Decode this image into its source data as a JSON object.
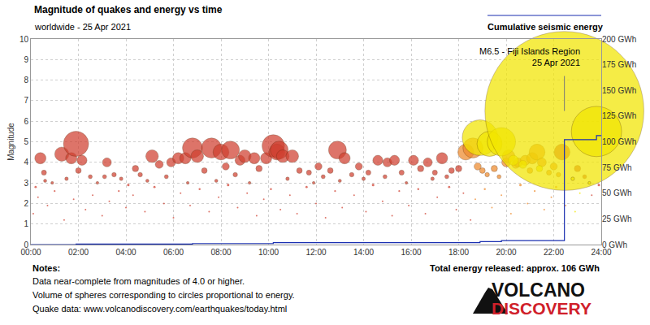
{
  "chart_data": {
    "type": "scatter",
    "title": "Magnitude of quakes and energy vs time",
    "subtitle": "worldwide - 25 Apr 2021",
    "y_label": "Magnitude",
    "xlim": [
      0,
      24
    ],
    "xticks": [
      {
        "value": 0,
        "label": "00:00"
      },
      {
        "value": 2,
        "label": "02:00"
      },
      {
        "value": 4,
        "label": "04:00"
      },
      {
        "value": 6,
        "label": "06:00"
      },
      {
        "value": 8,
        "label": "08:00"
      },
      {
        "value": 10,
        "label": "10:00"
      },
      {
        "value": 12,
        "label": "12:00"
      },
      {
        "value": 14,
        "label": "14:00"
      },
      {
        "value": 16,
        "label": "16:00"
      },
      {
        "value": 18,
        "label": "18:00"
      },
      {
        "value": 20,
        "label": "20:00"
      },
      {
        "value": 22,
        "label": "22:00"
      },
      {
        "value": 24,
        "label": "24:00"
      }
    ],
    "ylim": [
      0,
      10
    ],
    "yticks": [
      0,
      1,
      2,
      3,
      4,
      5,
      6,
      7,
      8,
      9,
      10
    ],
    "y2lim": [
      0,
      200
    ],
    "y2ticks": [
      {
        "value": 0,
        "label": "0 GWh"
      },
      {
        "value": 25,
        "label": "25 GWh"
      },
      {
        "value": 50,
        "label": "50 GWh"
      },
      {
        "value": 75,
        "label": "75 GWh"
      },
      {
        "value": 100,
        "label": "100 GWh"
      },
      {
        "value": 125,
        "label": "125 GWh"
      },
      {
        "value": 150,
        "label": "150 GWh"
      },
      {
        "value": 175,
        "label": "175 GWh"
      },
      {
        "value": 200,
        "label": "200 GWh"
      }
    ],
    "grid": true,
    "series": [
      {
        "type": "scatter",
        "marker": "circle",
        "color": "#d04030",
        "x": [
          0.1,
          0.2,
          0.3,
          0.4,
          0.55,
          0.6,
          0.7,
          0.9,
          1.0,
          1.3,
          1.4,
          1.5,
          1.7,
          1.8,
          1.9,
          2.0,
          2.15,
          2.3,
          2.5,
          2.6,
          2.8,
          3.0,
          3.1,
          3.2,
          3.3,
          3.5,
          3.7,
          3.8,
          4.0,
          4.1,
          4.3,
          4.4,
          4.6,
          4.8,
          4.9,
          5.1,
          5.2,
          5.4,
          5.6,
          5.7,
          5.9,
          6.0,
          6.2,
          6.3,
          6.5,
          6.6,
          6.7,
          6.8,
          7.0,
          7.1,
          7.3,
          7.5,
          7.6,
          7.8,
          7.9,
          8.0,
          8.2,
          8.3,
          8.4,
          8.6,
          8.7,
          8.8,
          9.0,
          9.1,
          9.2,
          9.4,
          9.5,
          9.6,
          9.8,
          9.9,
          10.1,
          10.2,
          10.35,
          10.45,
          10.5,
          10.6,
          10.8,
          10.9,
          11.0,
          11.2,
          11.3,
          11.6,
          11.7,
          11.9,
          12.0,
          12.1,
          12.3,
          12.4,
          12.6,
          12.8,
          12.9,
          13.0,
          13.1,
          13.2,
          13.5,
          13.6,
          13.8,
          14.0,
          14.1,
          14.2,
          14.4,
          14.6,
          14.8,
          14.9,
          15.0,
          15.2,
          15.3,
          15.5,
          15.6,
          15.8,
          15.9,
          16.1,
          16.3,
          16.4,
          16.6,
          16.7,
          16.9,
          17.0,
          17.1,
          17.3,
          17.5,
          17.6,
          17.7,
          17.9,
          18.0,
          18.2,
          18.5,
          22.35,
          23.0,
          23.3,
          23.6,
          23.9
        ],
        "values": [
          1.5,
          2.8,
          2.3,
          4.2,
          3.5,
          3.1,
          1.9,
          3.0,
          2.6,
          4.4,
          1.2,
          3.2,
          4.2,
          2.2,
          4.9,
          3.6,
          4.1,
          1.7,
          3.3,
          2.4,
          3.0,
          1.4,
          3.3,
          4.0,
          2.1,
          3.4,
          2.6,
          3.2,
          1.8,
          2.9,
          2.4,
          3.7,
          3.4,
          1.6,
          3.1,
          4.3,
          2.8,
          3.9,
          2.0,
          3.3,
          4.0,
          1.3,
          4.2,
          2.5,
          4.2,
          3.0,
          1.9,
          4.7,
          4.3,
          2.7,
          3.6,
          1.6,
          4.7,
          3.1,
          2.3,
          4.5,
          3.8,
          2.9,
          4.6,
          3.4,
          1.8,
          4.1,
          4.3,
          2.5,
          3.0,
          4.2,
          1.4,
          3.7,
          2.2,
          4.2,
          2.7,
          4.8,
          4.5,
          4.6,
          1.7,
          4.3,
          3.2,
          2.4,
          4.3,
          1.5,
          3.6,
          2.8,
          3.5,
          3.0,
          2.0,
          3.8,
          3.3,
          1.3,
          3.6,
          2.6,
          4.6,
          3.1,
          1.8,
          4.2,
          3.4,
          2.4,
          3.8,
          3.2,
          1.6,
          3.5,
          2.9,
          4.1,
          2.1,
          3.3,
          4.0,
          1.4,
          4.1,
          2.6,
          3.5,
          3.0,
          1.9,
          4.1,
          2.7,
          3.7,
          1.5,
          4.0,
          3.2,
          3.5,
          2.3,
          4.2,
          3.3,
          2.8,
          3.6,
          1.7,
          3.7,
          2.5,
          1.2,
          4.5,
          3.7,
          3.3,
          2.4,
          2.9
        ]
      },
      {
        "type": "scatter",
        "marker": "circle",
        "color": "#ee8a2c",
        "x": [
          18.3,
          18.6,
          18.7,
          18.8,
          19.0,
          19.1,
          19.2,
          19.4,
          19.5,
          19.7,
          19.8,
          20.0,
          20.1,
          20.2,
          20.4,
          20.5,
          20.6,
          20.8,
          20.9,
          21.0,
          21.1,
          21.2,
          21.3,
          21.5,
          21.6,
          21.8,
          21.9,
          22.0,
          22.1,
          22.2,
          22.5
        ],
        "values": [
          4.5,
          4.7,
          2.2,
          3.8,
          3.6,
          2.7,
          3.4,
          1.8,
          3.7,
          3.3,
          2.4,
          4.0,
          4.3,
          1.5,
          3.9,
          4.0,
          2.9,
          4.1,
          2.0,
          3.6,
          4.2,
          2.6,
          4.5,
          4.0,
          1.7,
          3.5,
          2.3,
          3.8,
          2.8,
          3.4,
          1.9
        ]
      },
      {
        "type": "scatter",
        "marker": "circle",
        "color": "#f2e600",
        "x": [
          18.9,
          19.3,
          19.8,
          20.3,
          20.7,
          21.4,
          22.45,
          22.8,
          22.9,
          23.1,
          23.5,
          23.8
        ],
        "values": [
          5.2,
          4.9,
          5.0,
          4.1,
          3.9,
          3.7,
          6.5,
          3.2,
          1.6,
          2.5,
          3.0,
          5.5
        ]
      },
      {
        "name": "Cumulative seismic energy",
        "type": "line",
        "axis": "y2",
        "color": "#1a2fb0",
        "line_style": "step",
        "x": [
          0,
          1.9,
          6.8,
          10.2,
          18.9,
          19.8,
          22.45,
          23.8,
          24
        ],
        "values": [
          0,
          0.5,
          1,
          1.8,
          2.8,
          3.8,
          102,
          106,
          106
        ]
      }
    ],
    "annotations": [
      {
        "text": [
          "M6.5 - Fiji Islands Region",
          "25 Apr 2021"
        ],
        "x": 22.45,
        "y": 6.5
      }
    ],
    "notes": {
      "title": "Notes:",
      "lines": [
        "Data near-complete from magnitudes of 4.0 or higher.",
        "Volume of spheres corresponding to circles proportional to energy.",
        "Quake data: www.volcanodiscovery.com/earthquakes/today.html"
      ]
    },
    "total": "Total energy released: approx. 106 GWh",
    "logo": [
      "VOLCANO",
      "DISCOVERY"
    ]
  }
}
